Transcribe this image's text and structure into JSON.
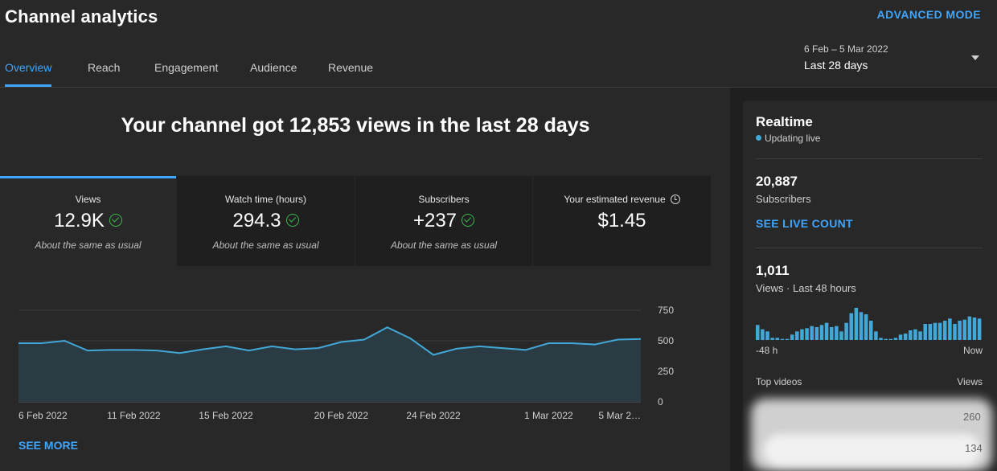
{
  "header": {
    "title": "Channel analytics",
    "advanced_mode": "ADVANCED MODE",
    "tabs": [
      {
        "label": "Overview"
      },
      {
        "label": "Reach"
      },
      {
        "label": "Engagement"
      },
      {
        "label": "Audience"
      },
      {
        "label": "Revenue"
      }
    ],
    "date_range": "6 Feb – 5 Mar 2022",
    "date_preset": "Last 28 days"
  },
  "main": {
    "headline": "Your channel got 12,853 views in the last 28 days",
    "metrics": [
      {
        "label": "Views",
        "value": "12.9K",
        "note": "About the same as usual"
      },
      {
        "label": "Watch time (hours)",
        "value": "294.3",
        "note": "About the same as usual"
      },
      {
        "label": "Subscribers",
        "value": "+237",
        "note": "About the same as usual"
      },
      {
        "label": "Your estimated revenue",
        "value": "$1.45"
      }
    ],
    "see_more": "SEE MORE"
  },
  "chart_data": {
    "type": "area",
    "x_tick_labels": [
      "6 Feb 2022",
      "11 Feb 2022",
      "15 Feb 2022",
      "20 Feb 2022",
      "24 Feb 2022",
      "1 Mar 2022",
      "5 Mar 2…"
    ],
    "x_tick_index": [
      0,
      5,
      9,
      14,
      18,
      23,
      27
    ],
    "y_tick_labels": [
      "750",
      "500",
      "250",
      "0"
    ],
    "ylim": [
      0,
      750
    ],
    "values": [
      480,
      480,
      500,
      420,
      425,
      425,
      420,
      400,
      430,
      455,
      420,
      455,
      430,
      440,
      490,
      510,
      610,
      520,
      385,
      435,
      455,
      440,
      425,
      480,
      480,
      470,
      510,
      515
    ],
    "colors": {
      "line": "#41a8d8",
      "fill": "#2a3b44",
      "grid": "#3d3d3d"
    }
  },
  "realtime": {
    "title": "Realtime",
    "status": "Updating live",
    "subscribers_value": "20,887",
    "subscribers_label": "Subscribers",
    "see_live_count": "SEE LIVE COUNT",
    "views_value": "1,011",
    "views_label": "Views · Last 48 hours",
    "axis_start": "-48 h",
    "axis_end": "Now",
    "top_videos_label": "Top videos",
    "views_col_label": "Views",
    "bars": [
      14,
      10,
      8,
      2,
      2,
      1,
      1,
      5,
      8,
      10,
      11,
      13,
      12,
      14,
      16,
      12,
      13,
      8,
      16,
      25,
      30,
      26,
      24,
      18,
      8,
      2,
      1,
      1,
      2,
      5,
      6,
      9,
      10,
      8,
      15,
      15,
      16,
      16,
      18,
      20,
      15,
      18,
      19,
      22,
      21,
      20
    ],
    "top_videos": [
      {
        "views": "260"
      },
      {
        "views": "134"
      }
    ]
  }
}
